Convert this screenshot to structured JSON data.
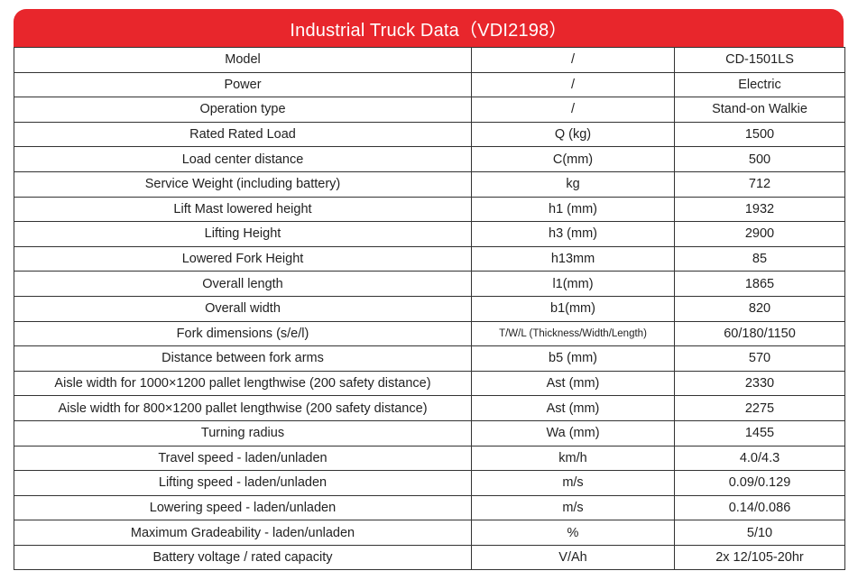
{
  "title": "Industrial Truck Data（VDI2198）",
  "rows": [
    {
      "param": "Model",
      "unit": "/",
      "value": "CD-1501LS"
    },
    {
      "param": "Power",
      "unit": "/",
      "value": "Electric"
    },
    {
      "param": "Operation type",
      "unit": "/",
      "value": "Stand-on Walkie"
    },
    {
      "param": "Rated Rated Load",
      "unit": "Q (kg)",
      "value": "1500"
    },
    {
      "param": "Load center distance",
      "unit": "C(mm)",
      "value": "500"
    },
    {
      "param": "Service Weight (including battery)",
      "unit": "kg",
      "value": "712"
    },
    {
      "param": "Lift Mast lowered height",
      "unit": "h1 (mm)",
      "value": "1932"
    },
    {
      "param": "Lifting Height",
      "unit": "h3 (mm)",
      "value": "2900"
    },
    {
      "param": "Lowered Fork Height",
      "unit": "h13mm",
      "value": "85"
    },
    {
      "param": "Overall length",
      "unit": "l1(mm)",
      "value": "1865"
    },
    {
      "param": "Overall width",
      "unit": "b1(mm)",
      "value": "820"
    },
    {
      "param": "Fork dimensions (s/e/l)",
      "unit": "T/W/L (Thickness/Width/Length)",
      "value": "60/180/1150"
    },
    {
      "param": "Distance between fork arms",
      "unit": "b5 (mm)",
      "value": "570"
    },
    {
      "param": "Aisle width for 1000×1200 pallet lengthwise (200 safety distance)",
      "unit": "Ast (mm)",
      "value": "2330"
    },
    {
      "param": "Aisle width for 800×1200 pallet lengthwise (200 safety distance)",
      "unit": "Ast (mm)",
      "value": "2275"
    },
    {
      "param": "Turning radius",
      "unit": "Wa (mm)",
      "value": "1455"
    },
    {
      "param": "Travel speed - laden/unladen",
      "unit": "km/h",
      "value": "4.0/4.3"
    },
    {
      "param": "Lifting speed - laden/unladen",
      "unit": "m/s",
      "value": "0.09/0.129"
    },
    {
      "param": "Lowering speed - laden/unladen",
      "unit": "m/s",
      "value": "0.14/0.086"
    },
    {
      "param": "Maximum Gradeability - laden/unladen",
      "unit": "%",
      "value": "5/10"
    },
    {
      "param": "Battery voltage / rated capacity",
      "unit": "V/Ah",
      "value": "2x 12/105-20hr"
    }
  ],
  "colors": {
    "header_bg": "#e8262c",
    "header_text": "#ffffff",
    "border": "#333333"
  }
}
